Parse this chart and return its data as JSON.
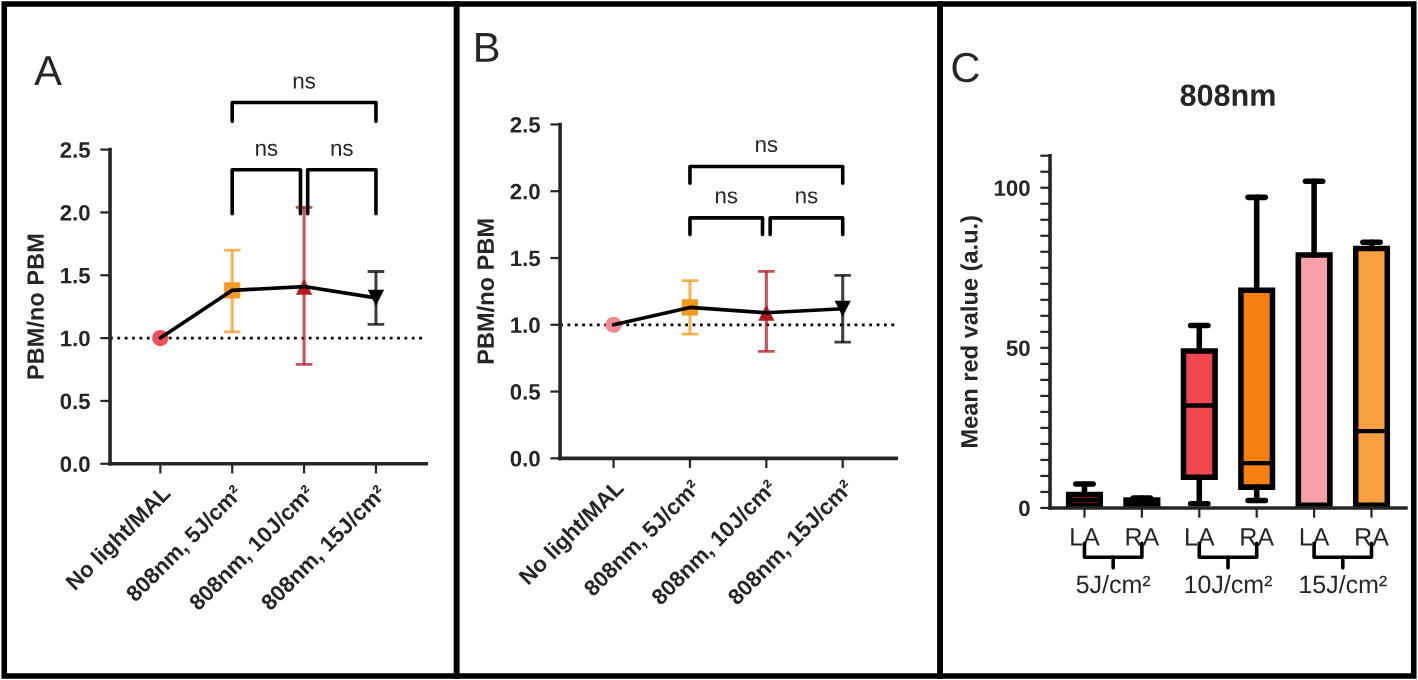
{
  "chart_data": [
    {
      "type": "line",
      "ylabel": "PBM/no PBM",
      "annotations": [
        "A",
        "ns",
        "ns",
        "ns"
      ],
      "categories": [
        "No light/MAL",
        "808nm, 5J/cm²",
        "808nm, 10J/cm²",
        "808nm, 15J/cm²"
      ],
      "series": [
        {
          "type": "line",
          "color": "#000000",
          "marker": "none",
          "values": [
            1.0,
            1.38,
            1.41,
            1.32
          ]
        },
        {
          "type": "scatter",
          "color": "#f0505a",
          "marker": "circle",
          "values": [
            1.0,
            null,
            null,
            null
          ]
        },
        {
          "type": "scatter",
          "color": "#f39a2a",
          "marker": "square",
          "values": [
            null,
            1.38,
            null,
            null
          ],
          "errors": [
            null,
            [
              1.05,
              1.7
            ],
            null,
            null
          ]
        },
        {
          "type": "scatter",
          "color": "#b01e24",
          "marker": "triangle",
          "values": [
            null,
            null,
            1.41,
            null
          ],
          "errors": [
            null,
            null,
            [
              0.79,
              2.04
            ],
            null
          ]
        },
        {
          "type": "scatter",
          "color": "#000000",
          "marker": "triangle_down",
          "values": [
            null,
            null,
            null,
            1.32
          ],
          "errors": [
            null,
            null,
            null,
            [
              1.11,
              1.53
            ]
          ]
        }
      ],
      "ylim": [
        0,
        2.5
      ],
      "yticks": [
        {
          "value": 0,
          "label": "0.0"
        },
        {
          "value": 0.5,
          "label": "0.5"
        },
        {
          "value": 1,
          "label": "1.0"
        },
        {
          "value": 1.5,
          "label": "1.5"
        },
        {
          "value": 2,
          "label": "2.0"
        },
        {
          "value": 2.5,
          "label": "2.5"
        }
      ],
      "ref_lines": [
        {
          "axis": "y",
          "value": 1,
          "color": "#000000",
          "line_style": "dotted"
        }
      ],
      "grid": false,
      "legend": false
    },
    {
      "type": "line",
      "ylabel": "PBM/no PBM",
      "annotations": [
        "B",
        "ns",
        "ns",
        "ns"
      ],
      "categories": [
        "No light/MAL",
        "808nm, 5J/cm²",
        "808nm, 10J/cm²",
        "808nm, 15J/cm²"
      ],
      "series": [
        {
          "type": "line",
          "color": "#000000",
          "marker": "none",
          "values": [
            1.0,
            1.13,
            1.09,
            1.12
          ]
        },
        {
          "type": "scatter",
          "color": "#f08a8e",
          "marker": "circle",
          "values": [
            1.0,
            null,
            null,
            null
          ]
        },
        {
          "type": "scatter",
          "color": "#f39a1a",
          "marker": "square",
          "values": [
            null,
            1.13,
            null,
            null
          ],
          "errors": [
            null,
            [
              0.93,
              1.33
            ],
            null,
            null
          ]
        },
        {
          "type": "scatter",
          "color": "#b01820",
          "marker": "triangle",
          "values": [
            null,
            null,
            1.09,
            null
          ],
          "errors": [
            null,
            null,
            [
              0.8,
              1.4
            ],
            null
          ]
        },
        {
          "type": "scatter",
          "color": "#000000",
          "marker": "triangle_down",
          "values": [
            null,
            null,
            null,
            1.12
          ],
          "errors": [
            null,
            null,
            null,
            [
              0.87,
              1.37
            ]
          ]
        }
      ],
      "ylim": [
        0,
        2.5
      ],
      "yticks": [
        {
          "value": 0,
          "label": "0.0"
        },
        {
          "value": 0.5,
          "label": "0.5"
        },
        {
          "value": 1,
          "label": "1.0"
        },
        {
          "value": 1.5,
          "label": "1.5"
        },
        {
          "value": 2,
          "label": "2.0"
        },
        {
          "value": 2.5,
          "label": "2.5"
        }
      ],
      "ref_lines": [
        {
          "axis": "y",
          "value": 1,
          "color": "#000000",
          "line_style": "dotted"
        }
      ],
      "grid": false,
      "legend": false
    },
    {
      "type": "box",
      "title": "808nm",
      "ylabel": "Mean red value (a.u.)",
      "annotations": [
        "C",
        "5J/cm²",
        "10J/cm²",
        "15J/cm²"
      ],
      "categories": [
        "LA",
        "RA",
        "LA",
        "RA",
        "LA",
        "RA"
      ],
      "colors": [
        "#e8262e",
        "#e07010",
        "#f0464e",
        "#f88010",
        "#f8a0a8",
        "#f8a040"
      ],
      "boxes": [
        {
          "low": 0,
          "q1": 0.8,
          "median": 2.5,
          "q3": 4.2,
          "high": 7.5
        },
        {
          "low": 0.5,
          "q1": 0.8,
          "median": 1.7,
          "q3": 2.5,
          "high": 3.1
        },
        {
          "low": 1.3,
          "q1": 9.6,
          "median": 32,
          "q3": 49,
          "high": 57
        },
        {
          "low": 2.3,
          "q1": 6.5,
          "median": 14,
          "q3": 68,
          "high": 97
        },
        {
          "low": 0,
          "q1": 0.5,
          "median": 1,
          "q3": 79,
          "high": 102
        },
        {
          "low": 0.2,
          "q1": 0.8,
          "median": 24,
          "q3": 81,
          "high": 83
        }
      ],
      "ylim": [
        0,
        110
      ],
      "yticks": [
        0,
        {
          "value": 5,
          "label": null
        },
        {
          "value": 10,
          "label": null
        },
        {
          "value": 15,
          "label": null
        },
        {
          "value": 20,
          "label": null
        },
        {
          "value": 25,
          "label": null
        },
        {
          "value": 30,
          "label": null
        },
        {
          "value": 35,
          "label": null
        },
        {
          "value": 40,
          "label": null
        },
        {
          "value": 45,
          "label": null
        },
        50,
        {
          "value": 55,
          "label": null
        },
        {
          "value": 60,
          "label": null
        },
        {
          "value": 65,
          "label": null
        },
        {
          "value": 70,
          "label": null
        },
        {
          "value": 75,
          "label": null
        },
        {
          "value": 80,
          "label": null
        },
        {
          "value": 85,
          "label": null
        },
        {
          "value": 90,
          "label": null
        },
        {
          "value": 95,
          "label": null
        },
        100,
        {
          "value": 105,
          "label": null
        },
        {
          "value": 110,
          "label": null
        }
      ],
      "grid": false,
      "legend": false
    }
  ]
}
